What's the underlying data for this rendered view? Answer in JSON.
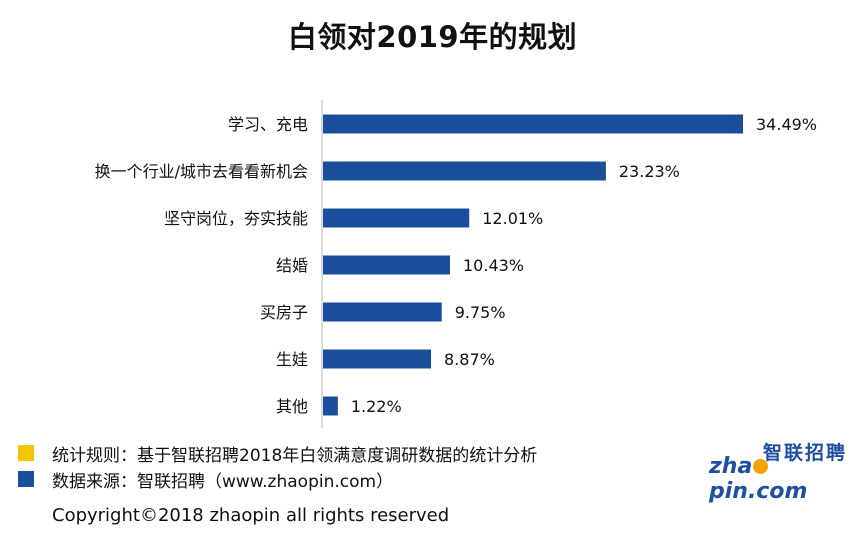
{
  "header": {
    "title": "白领对2019年的规划"
  },
  "chart_data": {
    "type": "bar",
    "orientation": "horizontal",
    "title": "白领对2019年的规划",
    "categories": [
      "学习、充电",
      "换一个行业/城市去看看新机会",
      "坚守岗位，夯实技能",
      "结婚",
      "买房子",
      "生娃",
      "其他"
    ],
    "values": [
      34.49,
      23.23,
      12.01,
      10.43,
      9.75,
      8.87,
      1.22
    ],
    "value_labels": [
      "34.49%",
      "23.23%",
      "12.01%",
      "10.43%",
      "9.75%",
      "8.87%",
      "1.22%"
    ],
    "xlim": [
      0,
      35
    ],
    "grid": false,
    "bar_color": "#1b4f9c"
  },
  "notes": [
    {
      "text": "统计规则：基于智联招聘2018年白领满意度调研数据的统计分析",
      "color": "#f5c400"
    },
    {
      "text": "数据来源：智联招聘（www.zhaopin.com）",
      "color": "#1b4f9c"
    }
  ],
  "footer": {
    "copyright": "Copyright©2018 zhaopin all rights reserved"
  },
  "logo": {
    "cn": "智联招聘",
    "en_left": "zha",
    "en_right": "pin.com"
  }
}
